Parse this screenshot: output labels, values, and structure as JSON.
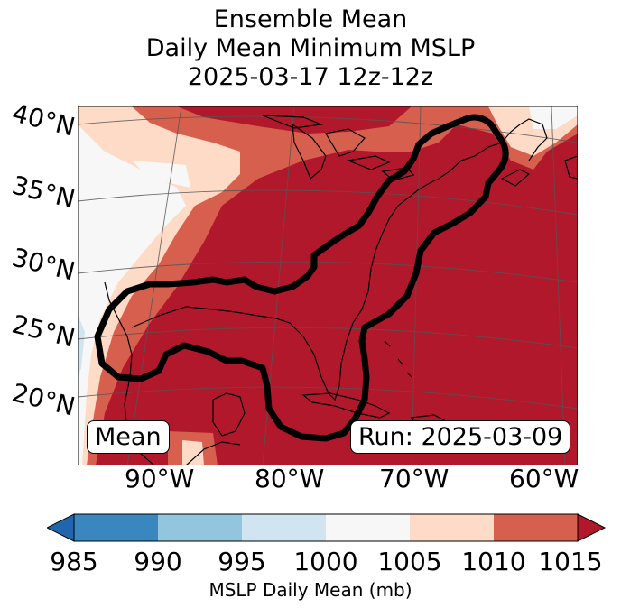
{
  "title": {
    "line1": "Ensemble Mean",
    "line2": "Daily Mean Minimum MSLP",
    "line3": "2025-03-17 12z-12z"
  },
  "map": {
    "lat_labels": [
      "40°N",
      "35°N",
      "30°N",
      "25°N",
      "20°N"
    ],
    "lon_labels": [
      "90°W",
      "80°W",
      "70°W",
      "60°W"
    ],
    "contour_label": "ensemble spread contour (black outline)"
  },
  "annotations": {
    "left_box": "Mean",
    "right_box": "Run: 2025-03-09"
  },
  "colorbar": {
    "ticks": [
      "985",
      "990",
      "995",
      "1000",
      "1005",
      "1010",
      "1015"
    ],
    "label": "MSLP Daily Mean (mb)",
    "colors": [
      "#2166ac",
      "#4393c3",
      "#92c5de",
      "#d1e5f0",
      "#f7f7f7",
      "#fddbc7",
      "#d6604d",
      "#b2182b"
    ]
  },
  "palette": {
    "p985_990": "#4393c3",
    "p990_995": "#92c5de",
    "p995_1000": "#d1e5f0",
    "p1000_1005": "#f7f7f7",
    "p1005_1010": "#fddbc7",
    "p1010_1015": "#d6604d",
    "p1015_plus": "#b2182b",
    "contour": "#000000",
    "coast": "#000000",
    "grid": "#555555"
  }
}
